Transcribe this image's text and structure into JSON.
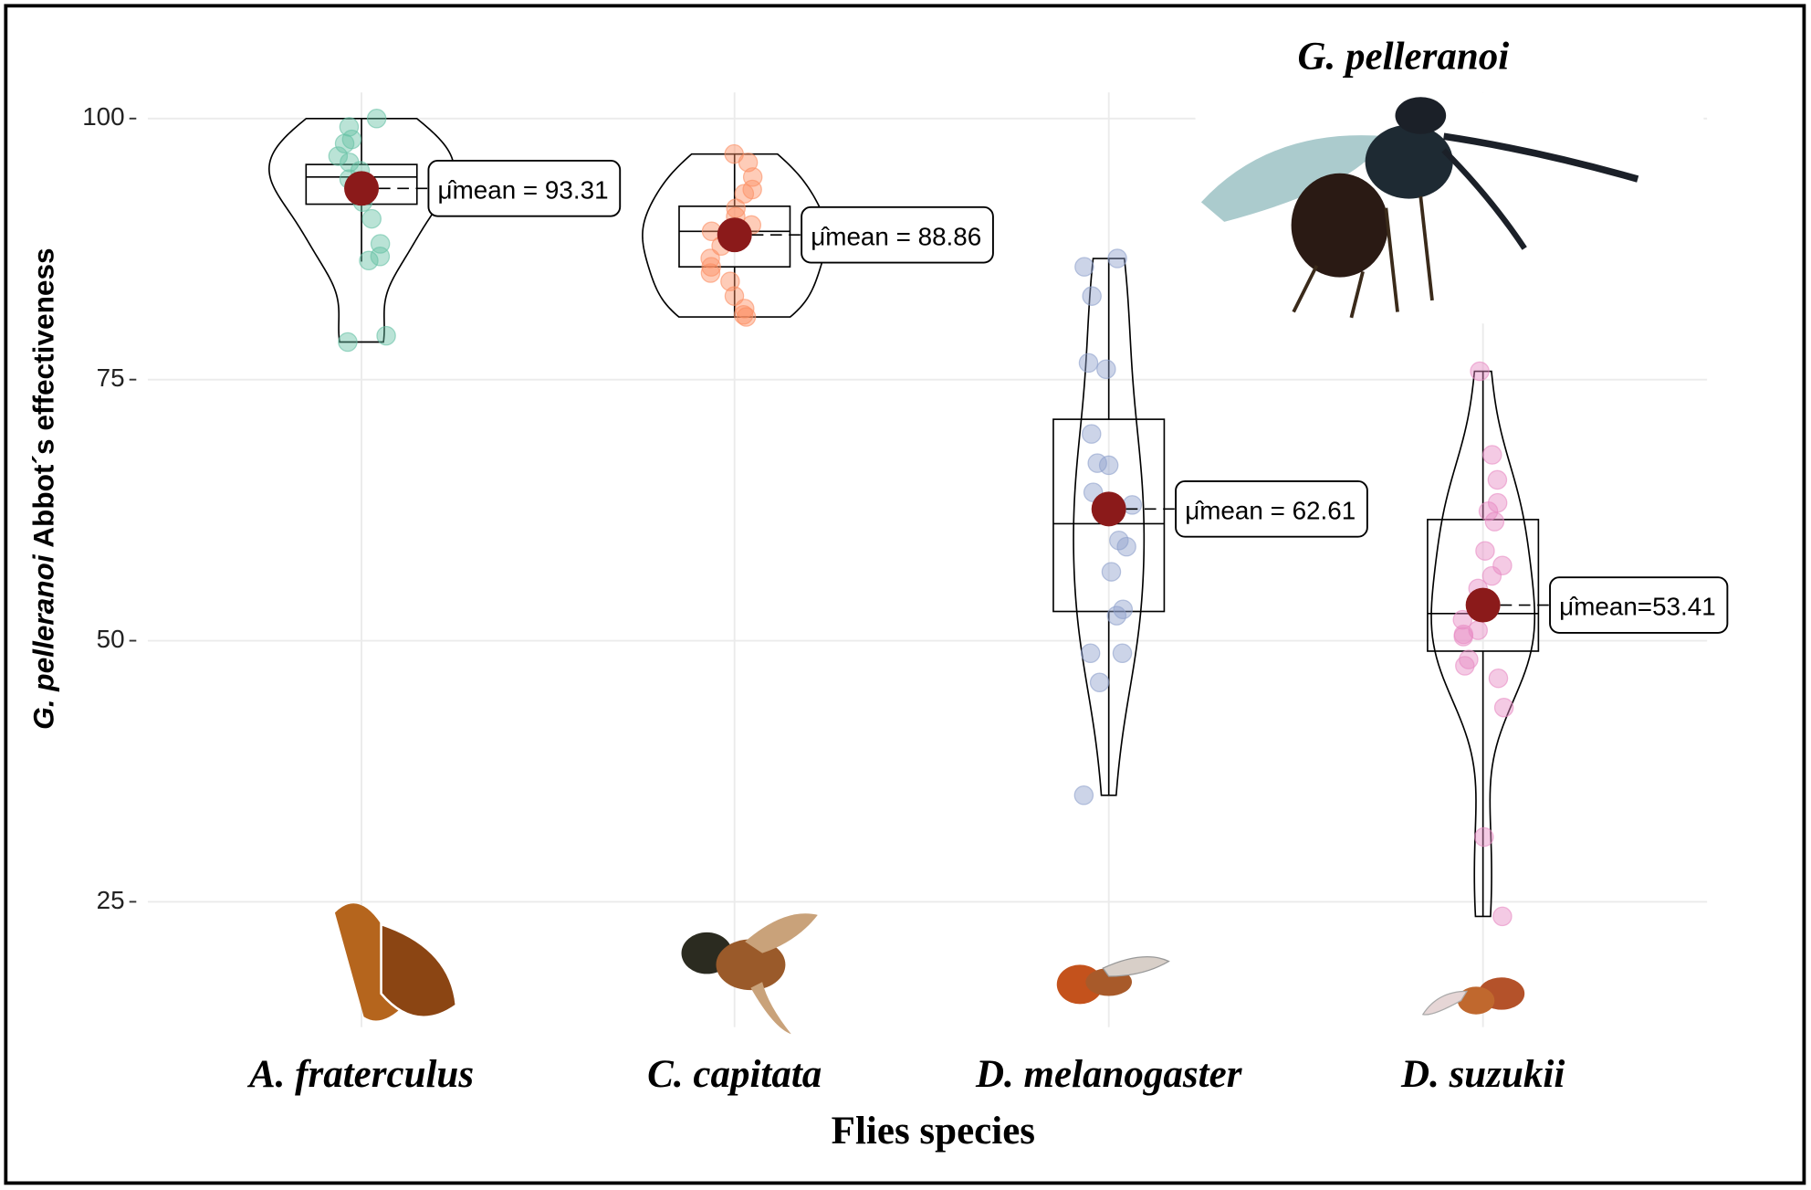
{
  "chart_data": {
    "type": "violin",
    "title": "G. pelleranoi",
    "xlabel": "Flies species",
    "ylabel_parts": [
      "G. pelleranoi",
      "Abbot´s effectiveness"
    ],
    "categories": [
      "A. fraterculus",
      "C. capitata",
      "D. melanogaster",
      "D. suzukii"
    ],
    "colors": [
      "#66c2a5",
      "#fc8d62",
      "#8da0cb",
      "#e78ac3"
    ],
    "mean_color": "#8b1a1a",
    "points": [
      [
        100,
        99.2,
        98,
        97.6,
        96.4,
        95.8,
        95,
        94.2,
        93.6,
        92.8,
        92,
        90.4,
        88,
        86.8,
        86.4,
        79.2,
        78.6
      ],
      [
        96.6,
        95.8,
        94.4,
        93.2,
        92.8,
        91.4,
        90.6,
        89.8,
        89.2,
        88.6,
        87.8,
        86.6,
        85.8,
        85.2,
        84.4,
        83,
        81.8,
        81.2,
        81
      ],
      [
        86.6,
        85.8,
        83,
        76.6,
        76,
        69.8,
        67,
        66.8,
        64.2,
        63,
        59.6,
        59,
        56.6,
        53,
        52.4,
        48.8,
        48.8,
        46,
        35.2
      ],
      [
        75.8,
        67.8,
        65.4,
        63.2,
        62.4,
        61.4,
        58.6,
        57.2,
        56.2,
        55,
        52,
        51,
        50.6,
        50.4,
        48.2,
        47.6,
        46.4,
        43.6,
        31.2,
        23.6
      ]
    ],
    "boxes": [
      {
        "q1": 91.8,
        "median": 94.4,
        "q3": 95.6,
        "whisker_low": 86.3,
        "whisker_high": 100
      },
      {
        "q1": 85.8,
        "median": 89.2,
        "q3": 91.6,
        "whisker_low": 81,
        "whisker_high": 96.6
      },
      {
        "q1": 52.8,
        "median": 61.2,
        "q3": 71.2,
        "whisker_low": 35.2,
        "whisker_high": 86.6
      },
      {
        "q1": 49,
        "median": 52.6,
        "q3": 61.6,
        "whisker_low": 23.6,
        "whisker_high": 75.8
      }
    ],
    "values": [
      93.31,
      88.86,
      62.61,
      53.41
    ],
    "value_labels": [
      "μ̂mean =  93.31",
      "μ̂mean =  88.86",
      "μ̂mean =  62.61",
      "μ̂mean=53.41"
    ],
    "ylim": [
      13,
      102.5
    ],
    "yticks": [
      25,
      50,
      75,
      100
    ],
    "grid": true
  }
}
